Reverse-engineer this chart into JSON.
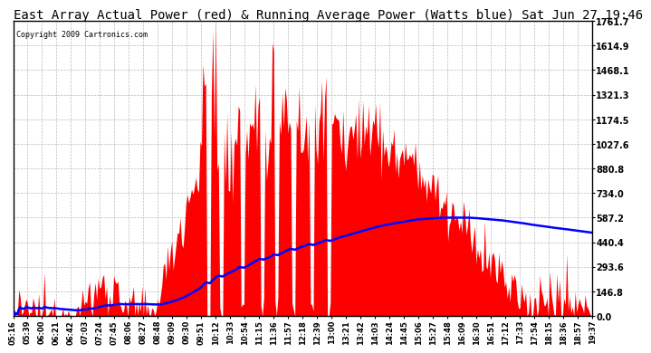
{
  "title": "East Array Actual Power (red) & Running Average Power (Watts blue) Sat Jun 27 19:46",
  "copyright": "Copyright 2009 Cartronics.com",
  "yticks": [
    0.0,
    146.8,
    293.6,
    440.4,
    587.2,
    734.0,
    880.8,
    1027.6,
    1174.5,
    1321.3,
    1468.1,
    1614.9,
    1761.7
  ],
  "ymax": 1761.7,
  "xtick_labels": [
    "05:16",
    "05:39",
    "06:00",
    "06:21",
    "06:42",
    "07:03",
    "07:24",
    "07:45",
    "08:06",
    "08:27",
    "08:48",
    "09:09",
    "09:30",
    "09:51",
    "10:12",
    "10:33",
    "10:54",
    "11:15",
    "11:36",
    "11:57",
    "12:18",
    "12:39",
    "13:00",
    "13:21",
    "13:42",
    "14:03",
    "14:24",
    "14:45",
    "15:06",
    "15:27",
    "15:48",
    "16:09",
    "16:30",
    "16:51",
    "17:12",
    "17:33",
    "17:54",
    "18:15",
    "18:36",
    "18:57",
    "19:37"
  ],
  "bar_color": "#FF0000",
  "avg_color": "#0000FF",
  "bg_color": "#FFFFFF",
  "grid_color": "#BBBBBB",
  "title_color": "#000000",
  "title_fontsize": 10,
  "fig_border_color": "#000000"
}
